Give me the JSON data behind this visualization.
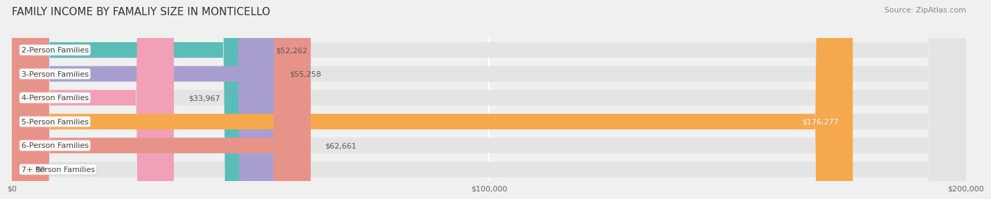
{
  "title": "FAMILY INCOME BY FAMALIY SIZE IN MONTICELLO",
  "source": "Source: ZipAtlas.com",
  "categories": [
    "2-Person Families",
    "3-Person Families",
    "4-Person Families",
    "5-Person Families",
    "6-Person Families",
    "7+ Person Families"
  ],
  "values": [
    52262,
    55258,
    33967,
    176277,
    62661,
    0
  ],
  "bar_colors": [
    "#5BBCB8",
    "#A89FD0",
    "#F2A0B8",
    "#F5A84E",
    "#E8938A",
    "#A8C8E8"
  ],
  "value_labels": [
    "$52,262",
    "$55,258",
    "$33,967",
    "$176,277",
    "$62,661",
    "$0"
  ],
  "xlim": [
    0,
    200000
  ],
  "xticks": [
    0,
    100000,
    200000
  ],
  "xtick_labels": [
    "$0",
    "$100,000",
    "$200,000"
  ],
  "bg_color": "#f0f0f0",
  "bar_bg_color": "#e4e4e4",
  "title_fontsize": 11,
  "source_fontsize": 8,
  "label_fontsize": 8,
  "value_fontsize": 8,
  "bar_height": 0.65
}
